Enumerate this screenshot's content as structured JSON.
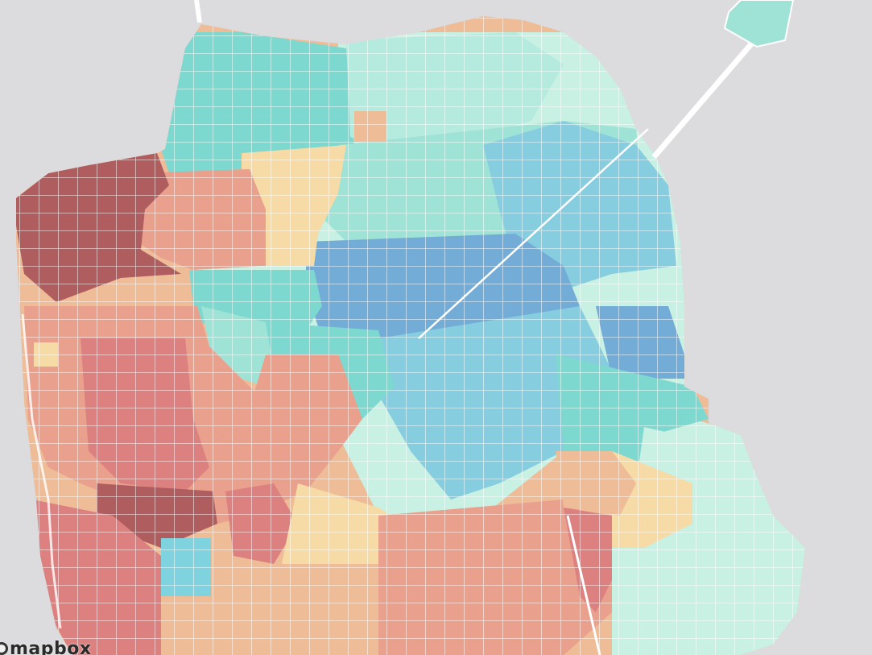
{
  "map": {
    "attribution_logo": "mapbox",
    "background_color": "#dcdcdf",
    "road_color": "#ffffff",
    "grid_line_color": "rgba(255,255,255,0.85)",
    "palette": {
      "dark_red": "#b05d5f",
      "red": "#dd8080",
      "salmon": "#e9a08d",
      "peach": "#eebc97",
      "light_yellow": "#f6dba6",
      "pale_mint": "#c8f0e3",
      "mint": "#9fe3d6",
      "teal": "#7dd8cf",
      "sky": "#86cde0",
      "blue": "#73acd6"
    }
  }
}
